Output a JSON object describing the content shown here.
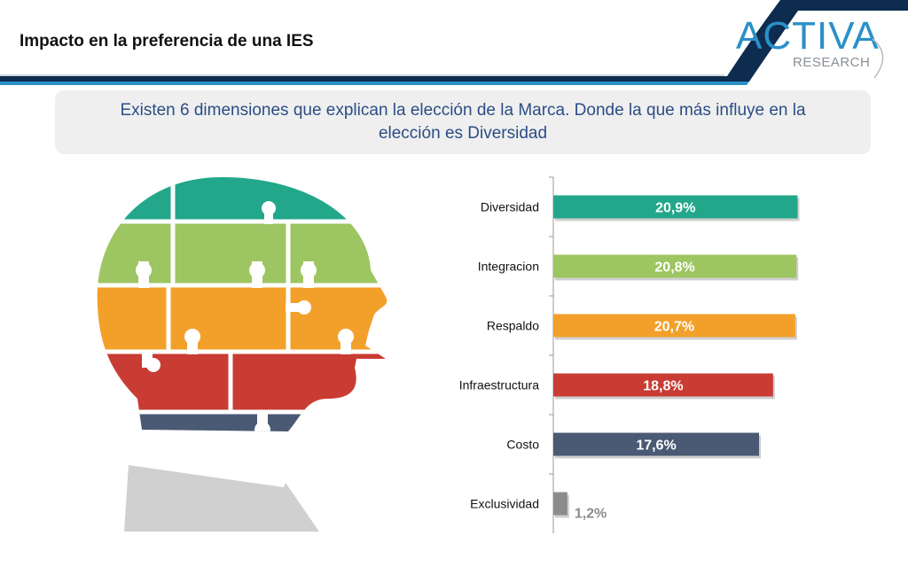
{
  "header": {
    "title": "Impacto en la preferencia de una  IES",
    "logo": {
      "main": "ACTIVA",
      "sub": "RESEARCH"
    }
  },
  "headline": "Existen 6 dimensiones que explican la elección de la Marca. Donde la que más influye en la elección es Diversidad",
  "colors": {
    "teal": "#22a78a",
    "green": "#9dc561",
    "orange": "#f3a02a",
    "red": "#c93c33",
    "navy": "#4a5a74",
    "gray": "#8c8c8c",
    "accent_blue": "#2b4d86"
  },
  "chart_data": {
    "type": "bar",
    "orientation": "horizontal",
    "categories": [
      "Diversidad",
      "Integracion",
      "Respaldo",
      "Infraestructura",
      "Costo",
      "Exclusividad"
    ],
    "values": [
      20.9,
      20.8,
      20.7,
      18.8,
      17.6,
      1.2
    ],
    "labels": [
      "20,9%",
      "20,8%",
      "20,7%",
      "18,8%",
      "17,6%",
      "1,2%"
    ],
    "bar_colors": [
      "#22a78a",
      "#9dc561",
      "#f3a02a",
      "#c93c33",
      "#4a5a74",
      "#8c8c8c"
    ],
    "xlim": [
      0,
      22
    ],
    "grid": false,
    "legend": "none"
  }
}
